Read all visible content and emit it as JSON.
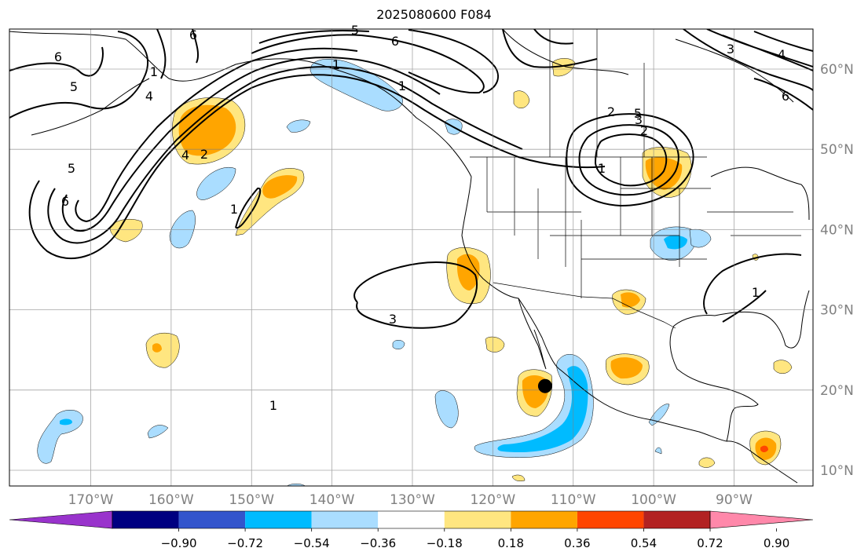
{
  "title": "2025080600 F084",
  "axes": {
    "lon_labels": [
      "170°W",
      "160°W",
      "150°W",
      "140°W",
      "130°W",
      "120°W",
      "110°W",
      "100°W",
      "90°W"
    ],
    "lat_labels": [
      "60°N",
      "50°N",
      "40°N",
      "30°N",
      "20°N",
      "10°N"
    ],
    "label_color": "#808080",
    "grid": true
  },
  "colorbar": {
    "tick_labels": [
      "−0.90",
      "−0.72",
      "−0.54",
      "−0.36",
      "−0.18",
      "0.18",
      "0.36",
      "0.54",
      "0.72",
      "0.90"
    ],
    "colors": [
      "#9933cc",
      "#000080",
      "#3355cc",
      "#00bbff",
      "#aaddff",
      "#ffffff",
      "#ffe680",
      "#ffa500",
      "#ff4500",
      "#b22222",
      "#ff88aa"
    ],
    "extend": "both"
  },
  "contour_labels": [
    "6",
    "5",
    "4",
    "6",
    "5",
    "6",
    "1",
    "4",
    "2",
    "1",
    "5",
    "6",
    "1",
    "1",
    "3",
    "2",
    "3",
    "2",
    "1",
    "3",
    "4",
    "6",
    "5",
    "1",
    "1"
  ],
  "marker": {
    "lon": -113.5,
    "lat": 20.5,
    "color": "#000000"
  }
}
